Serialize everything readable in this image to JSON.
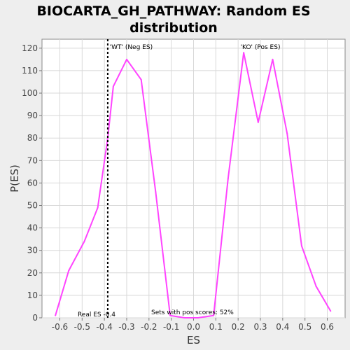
{
  "chart_data": {
    "type": "line",
    "title_line1": "BIOCARTA_GH_PATHWAY: Random ES",
    "title_line2": "distribution",
    "xlabel": "ES",
    "ylabel": "P(ES)",
    "xlim": [
      -0.68,
      0.68
    ],
    "ylim": [
      0,
      124
    ],
    "xticks": [
      -0.6,
      -0.5,
      -0.4,
      -0.3,
      -0.2,
      -0.1,
      0.0,
      0.1,
      0.2,
      0.3,
      0.4,
      0.5,
      0.6
    ],
    "xtick_labels": [
      "-0.6",
      "-0.5",
      "-0.4",
      "-0.3",
      "-0.2",
      "-0.1",
      "0.0",
      "0.1",
      "0.2",
      "0.3",
      "0.4",
      "0.5",
      "0.6"
    ],
    "yticks": [
      0,
      10,
      20,
      30,
      40,
      50,
      60,
      70,
      80,
      90,
      100,
      110,
      120
    ],
    "ytick_labels": [
      "0",
      "10",
      "20",
      "30",
      "40",
      "50",
      "60",
      "70",
      "80",
      "90",
      "100",
      "110",
      "120"
    ],
    "grid": true,
    "series": [
      {
        "color": "#ff44ff",
        "x": [
          -0.62,
          -0.56,
          -0.49,
          -0.43,
          -0.385,
          -0.36,
          -0.3,
          -0.235,
          -0.17,
          -0.105,
          -0.04,
          0.02,
          0.09,
          0.155,
          0.225,
          0.29,
          0.355,
          0.42,
          0.485,
          0.55,
          0.615
        ],
        "y": [
          1,
          21,
          34,
          49,
          80,
          103,
          115,
          106,
          56,
          1,
          0,
          0,
          1,
          62,
          118,
          87,
          115,
          82,
          32,
          14,
          3
        ]
      }
    ],
    "real_es": -0.385,
    "real_es_label": "Real ES -0.4",
    "pos_scores_label": "Sets with pos scores: 52%",
    "neg_label": "'WT' (Neg ES)",
    "pos_label": "'KO' (Pos ES)",
    "colors": {
      "background": "#eeeeee",
      "plot_background": "#ffffff",
      "grid": "#d8d8d8",
      "line": "#ff44ff",
      "neg_label": "#3333cc",
      "pos_label": "#cc2222"
    }
  }
}
